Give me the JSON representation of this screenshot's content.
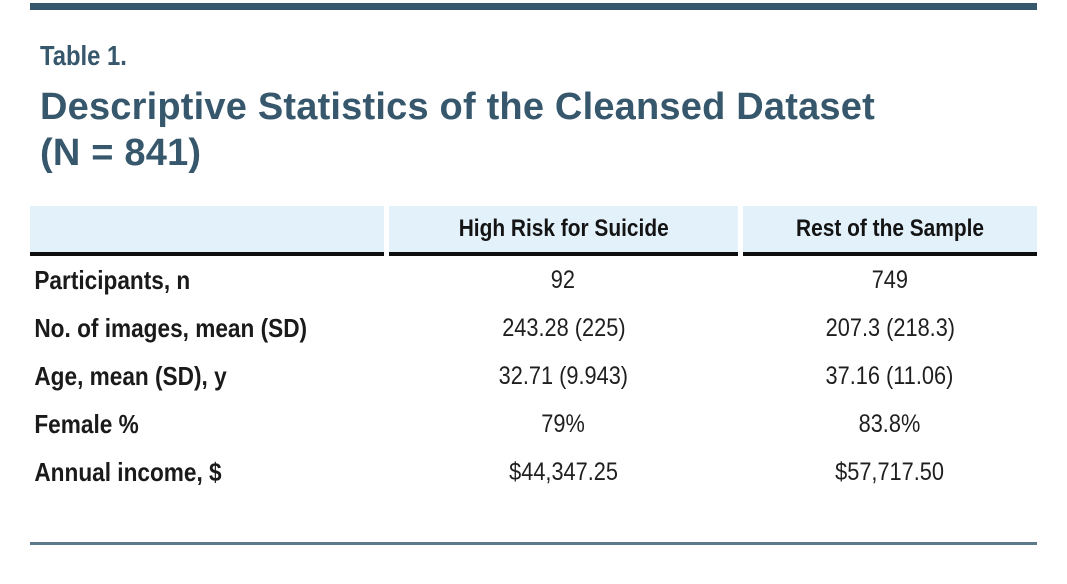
{
  "meta": {
    "accent_color": "#36576c",
    "header_bg_color": "#e3f1fb",
    "header_rule_color": "#0f0f0f",
    "bottom_rule_color": "#5e7a8a"
  },
  "eyebrow": "Table 1.",
  "title_line1": "Descriptive Statistics of the Cleansed Dataset",
  "title_line2": "(N = 841)",
  "table": {
    "columns": [
      "",
      "High Risk for Suicide",
      "Rest of the Sample"
    ],
    "rows": [
      {
        "label": "Participants, n",
        "high_risk": "92",
        "rest": "749"
      },
      {
        "label": "No. of images, mean (SD)",
        "high_risk": "243.28 (225)",
        "rest": "207.3 (218.3)"
      },
      {
        "label": "Age, mean (SD), y",
        "high_risk": "32.71 (9.943)",
        "rest": "37.16 (11.06)"
      },
      {
        "label": "Female %",
        "high_risk": "79%",
        "rest": "83.8%"
      },
      {
        "label": "Annual income, $",
        "high_risk": "$44,347.25",
        "rest": "$57,717.50"
      }
    ]
  }
}
